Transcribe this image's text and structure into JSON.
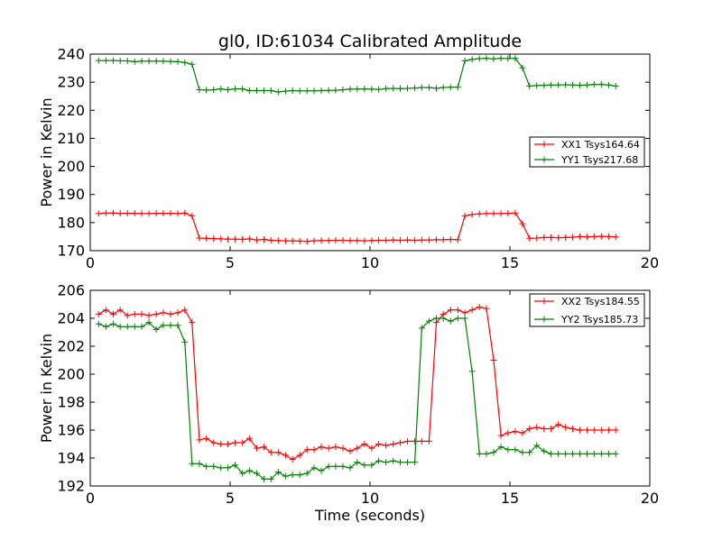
{
  "chart_data": [
    {
      "type": "line",
      "title": "gl0, ID:61034 Calibrated Amplitude",
      "xlabel": "",
      "ylabel": "Power in Kelvin",
      "xlim": [
        0,
        20
      ],
      "ylim": [
        170,
        240
      ],
      "xticks": [
        0,
        5,
        10,
        15,
        20
      ],
      "yticks": [
        170,
        180,
        190,
        200,
        210,
        220,
        230,
        240
      ],
      "xtick_labels": [
        "0",
        "5",
        "10",
        "15",
        "20"
      ],
      "ytick_labels": [
        "170",
        "180",
        "190",
        "200",
        "210",
        "220",
        "230",
        "240"
      ],
      "legend_position": "center-right",
      "x": [
        0.3,
        0.56,
        0.82,
        1.07,
        1.33,
        1.59,
        1.84,
        2.1,
        2.36,
        2.61,
        2.87,
        3.13,
        3.38,
        3.64,
        3.9,
        4.15,
        4.41,
        4.67,
        4.92,
        5.18,
        5.44,
        5.69,
        5.95,
        6.21,
        6.46,
        6.72,
        6.98,
        7.23,
        7.49,
        7.75,
        8.0,
        8.26,
        8.52,
        8.77,
        9.03,
        9.29,
        9.54,
        9.8,
        10.06,
        10.31,
        10.57,
        10.83,
        11.08,
        11.34,
        11.6,
        11.85,
        12.11,
        12.37,
        12.62,
        12.88,
        13.14,
        13.39,
        13.65,
        13.91,
        14.16,
        14.42,
        14.68,
        14.93,
        15.19,
        15.45,
        15.7,
        15.96,
        16.22,
        16.47,
        16.73,
        16.99,
        17.24,
        17.5,
        17.76,
        18.01,
        18.27,
        18.53,
        18.78
      ],
      "series": [
        {
          "name": "XX1 Tsys164.64",
          "color": "#ff0000",
          "values": [
            183.2,
            183.4,
            183.4,
            183.3,
            183.3,
            183.3,
            183.2,
            183.2,
            183.3,
            183.3,
            183.3,
            183.2,
            183.4,
            182.4,
            174.5,
            174.4,
            174.3,
            174.2,
            174.1,
            174.1,
            174.0,
            174.2,
            173.8,
            174.0,
            173.7,
            173.6,
            173.5,
            173.5,
            173.4,
            173.3,
            173.5,
            173.6,
            173.6,
            173.7,
            173.7,
            173.6,
            173.6,
            173.5,
            173.6,
            173.7,
            173.7,
            173.8,
            173.7,
            173.8,
            173.7,
            173.8,
            173.8,
            173.9,
            173.9,
            174.0,
            173.9,
            182.4,
            182.9,
            183.1,
            183.2,
            183.2,
            183.2,
            183.3,
            183.4,
            179.6,
            174.4,
            174.5,
            174.7,
            174.7,
            174.6,
            174.7,
            174.8,
            175.0,
            174.9,
            175.0,
            175.1,
            175.0,
            174.9
          ]
        },
        {
          "name": "YY1 Tsys217.68",
          "color": "#008000",
          "values": [
            237.7,
            237.7,
            237.7,
            237.6,
            237.6,
            237.3,
            237.5,
            237.5,
            237.5,
            237.5,
            237.4,
            237.3,
            237.0,
            236.4,
            227.3,
            227.2,
            227.3,
            227.6,
            227.3,
            227.6,
            227.6,
            227.0,
            227.0,
            227.0,
            227.0,
            226.5,
            226.8,
            227.0,
            226.9,
            226.9,
            226.9,
            227.0,
            227.1,
            227.1,
            227.3,
            227.5,
            227.5,
            227.6,
            227.5,
            227.4,
            227.7,
            227.8,
            227.7,
            227.8,
            227.9,
            228.1,
            228.1,
            227.8,
            228.1,
            228.2,
            228.2,
            237.6,
            238.1,
            238.4,
            238.5,
            238.3,
            238.5,
            238.4,
            238.5,
            235.1,
            228.6,
            228.8,
            228.9,
            229.0,
            229.0,
            229.1,
            229.0,
            228.9,
            229.0,
            229.2,
            229.2,
            229.0,
            228.6
          ]
        }
      ]
    },
    {
      "type": "line",
      "title": "",
      "xlabel": "Time (seconds)",
      "ylabel": "Power in Kelvin",
      "xlim": [
        0,
        20
      ],
      "ylim": [
        192,
        206
      ],
      "xticks": [
        0,
        5,
        10,
        15,
        20
      ],
      "yticks": [
        192,
        194,
        196,
        198,
        200,
        202,
        204,
        206
      ],
      "xtick_labels": [
        "0",
        "5",
        "10",
        "15",
        "20"
      ],
      "ytick_labels": [
        "192",
        "194",
        "196",
        "198",
        "200",
        "202",
        "204",
        "206"
      ],
      "legend_position": "top-right",
      "x": [
        0.3,
        0.56,
        0.82,
        1.07,
        1.33,
        1.59,
        1.84,
        2.1,
        2.36,
        2.61,
        2.87,
        3.13,
        3.38,
        3.64,
        3.9,
        4.15,
        4.41,
        4.67,
        4.92,
        5.18,
        5.44,
        5.69,
        5.95,
        6.21,
        6.46,
        6.72,
        6.98,
        7.23,
        7.49,
        7.75,
        8.0,
        8.26,
        8.52,
        8.77,
        9.03,
        9.29,
        9.54,
        9.8,
        10.06,
        10.31,
        10.57,
        10.83,
        11.08,
        11.34,
        11.6,
        11.85,
        12.11,
        12.37,
        12.62,
        12.88,
        13.14,
        13.39,
        13.65,
        13.91,
        14.16,
        14.42,
        14.68,
        14.93,
        15.19,
        15.45,
        15.7,
        15.96,
        16.22,
        16.47,
        16.73,
        16.99,
        17.24,
        17.5,
        17.76,
        18.01,
        18.27,
        18.53,
        18.78
      ],
      "series": [
        {
          "name": "XX2 Tsys184.55",
          "color": "#ff0000",
          "values": [
            204.3,
            204.6,
            204.3,
            204.6,
            204.2,
            204.3,
            204.3,
            204.2,
            204.3,
            204.4,
            204.3,
            204.4,
            204.6,
            203.7,
            195.3,
            195.4,
            195.1,
            195.0,
            195.0,
            195.1,
            195.1,
            195.4,
            194.7,
            194.8,
            194.4,
            194.4,
            194.2,
            193.9,
            194.2,
            194.6,
            194.6,
            194.8,
            194.7,
            194.8,
            194.7,
            194.5,
            194.7,
            195.0,
            194.7,
            195.0,
            194.9,
            195.0,
            195.1,
            195.2,
            195.2,
            195.2,
            195.2,
            203.7,
            204.3,
            204.6,
            204.6,
            204.4,
            204.6,
            204.8,
            204.7,
            201.0,
            195.6,
            195.8,
            195.9,
            195.8,
            196.1,
            196.2,
            196.1,
            196.1,
            196.4,
            196.2,
            196.1,
            196.0,
            196.0,
            196.0,
            196.0,
            196.0,
            196.0
          ]
        },
        {
          "name": "YY2 Tsys185.73",
          "color": "#008000",
          "values": [
            203.6,
            203.4,
            203.6,
            203.4,
            203.4,
            203.4,
            203.4,
            203.7,
            203.2,
            203.5,
            203.5,
            203.5,
            202.3,
            193.6,
            193.6,
            193.4,
            193.4,
            193.3,
            193.3,
            193.5,
            192.9,
            193.1,
            192.9,
            192.5,
            192.5,
            193.0,
            192.7,
            192.8,
            192.8,
            192.9,
            193.3,
            193.1,
            193.4,
            193.4,
            193.4,
            193.3,
            193.7,
            193.5,
            193.5,
            193.8,
            193.7,
            193.8,
            193.7,
            193.7,
            193.7,
            203.3,
            203.8,
            204.0,
            204.0,
            203.8,
            204.0,
            204.0,
            200.2,
            194.3,
            194.3,
            194.4,
            194.8,
            194.6,
            194.6,
            194.4,
            194.4,
            194.9,
            194.5,
            194.3,
            194.3,
            194.3,
            194.3,
            194.3,
            194.3,
            194.3,
            194.3,
            194.3,
            194.3
          ]
        }
      ]
    }
  ]
}
